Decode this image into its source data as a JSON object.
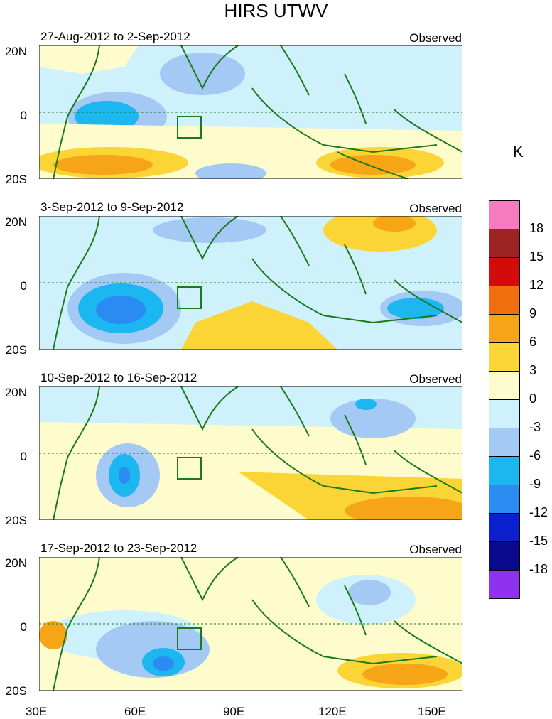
{
  "title": "HIRS UTWV",
  "observed_label": "Observed",
  "colorbar": {
    "unit": "K",
    "labels": [
      "18",
      "15",
      "12",
      "9",
      "6",
      "3",
      "0",
      "-3",
      "-6",
      "-9",
      "-12",
      "-15",
      "-18"
    ],
    "colors": [
      "#f77bbf",
      "#9e2424",
      "#d40b0b",
      "#f26d0c",
      "#f6a516",
      "#fbd535",
      "#fefccc",
      "#cff1fb",
      "#a4c9f4",
      "#1cb6f0",
      "#2a8bf0",
      "#0b1fcf",
      "#0a0a8d",
      "#8f32f0"
    ]
  },
  "axes": {
    "y_ticks": [
      "20N",
      "0",
      "20S"
    ],
    "x_ticks": [
      "30E",
      "60E",
      "90E",
      "120E",
      "150E"
    ]
  },
  "panels": [
    {
      "date_range": "27-Aug-2012 to 2-Sep-2012"
    },
    {
      "date_range": "3-Sep-2012 to 9-Sep-2012"
    },
    {
      "date_range": "10-Sep-2012 to 16-Sep-2012"
    },
    {
      "date_range": "17-Sep-2012 to 23-Sep-2012"
    }
  ]
}
